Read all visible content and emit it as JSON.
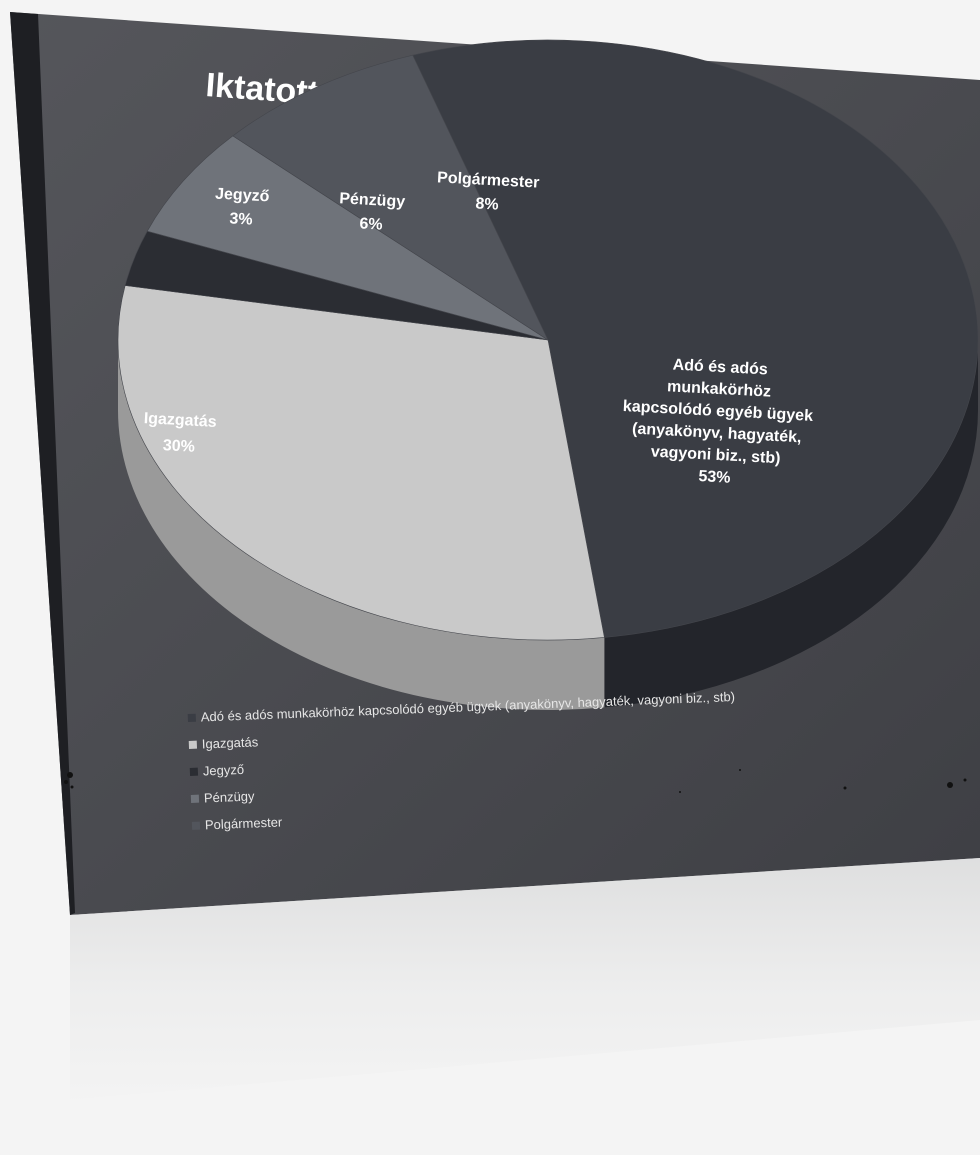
{
  "chart_data": {
    "type": "pie",
    "title": "Iktatott iratok (alszám és főszám) 2023",
    "three_d": true,
    "legend_position": "bottom-left",
    "slices": [
      {
        "name": "Adó és adós munkakörhöz kapcsolódó egyéb ügyek (anyakönyv, hagyaték, vagyoni biz., stb)",
        "label_lines": [
          "Adó és adós",
          "munkakörhöz",
          "kapcsolódó egyéb ügyek",
          "(anyakönyv, hagyaték,",
          "vagyoni biz., stb)"
        ],
        "value": 53,
        "percent_label": "53%",
        "color": "#3a3d44",
        "side_color": "#23252b"
      },
      {
        "name": "Igazgatás",
        "label_lines": [
          "Igazgatás"
        ],
        "value": 30,
        "percent_label": "30%",
        "color": "#c9c9c9",
        "side_color": "#9a9a9a"
      },
      {
        "name": "Jegyző",
        "label_lines": [
          "Jegyző"
        ],
        "value": 3,
        "percent_label": "3%",
        "color": "#2b2d33",
        "side_color": "#1b1c20"
      },
      {
        "name": "Pénzügy",
        "label_lines": [
          "Pénzügy"
        ],
        "value": 6,
        "percent_label": "6%",
        "color": "#6f737a",
        "side_color": "#50535a"
      },
      {
        "name": "Polgármester",
        "label_lines": [
          "Polgármester"
        ],
        "value": 8,
        "percent_label": "8%",
        "color": "#52555c",
        "side_color": "#3b3e44"
      }
    ]
  },
  "colors": {
    "slide_background": "#4a4b50",
    "title_color": "#ffffff",
    "label_color": "#ffffff",
    "page_background": "#f4f4f4"
  }
}
